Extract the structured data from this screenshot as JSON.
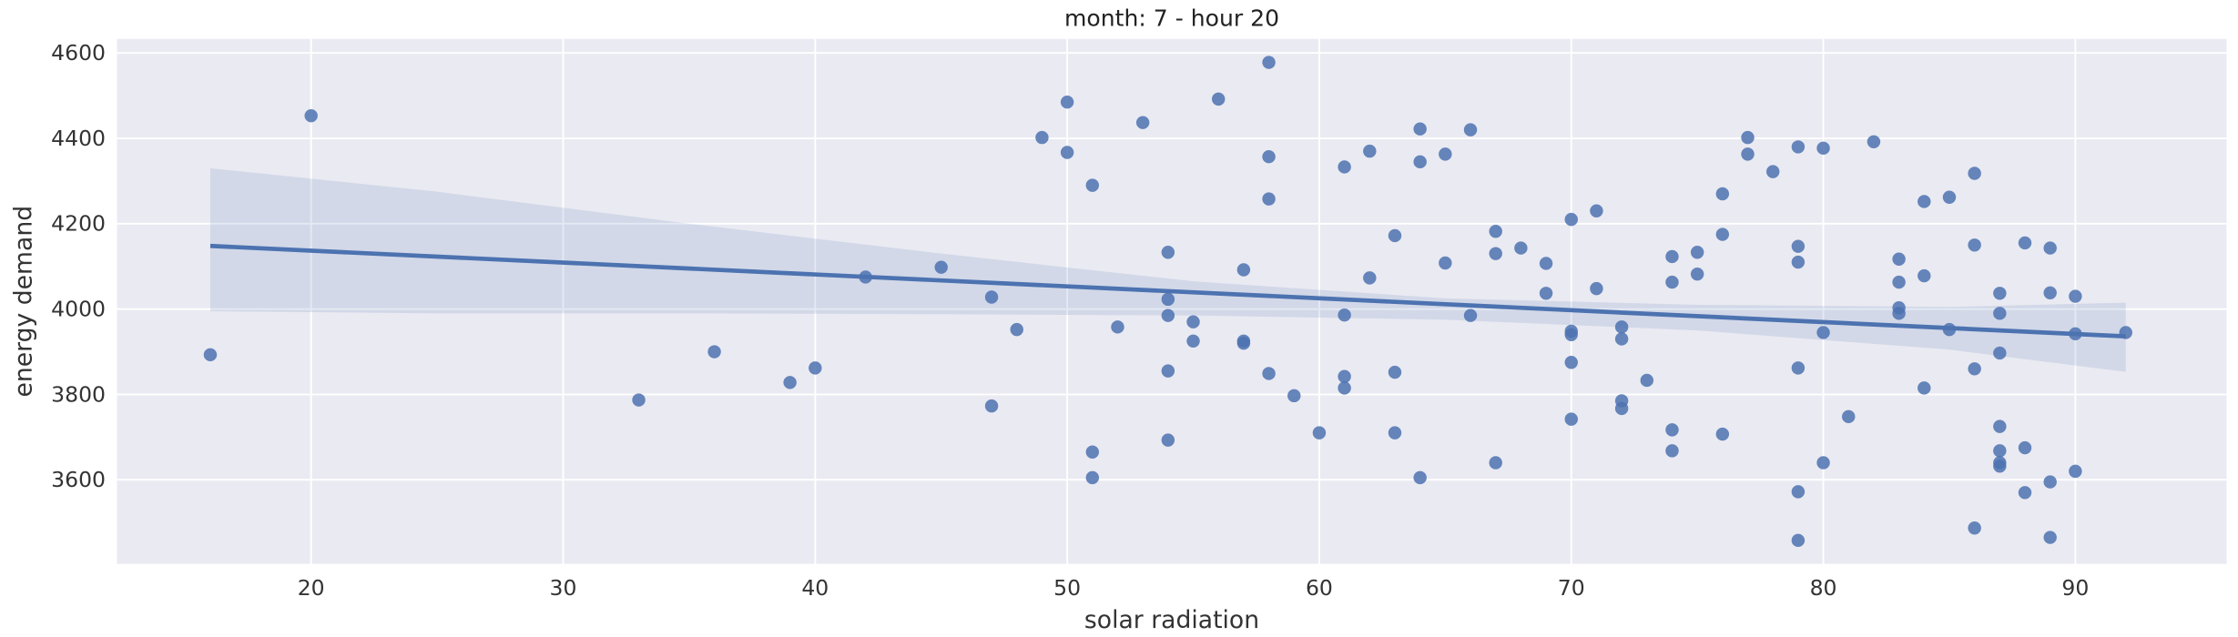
{
  "chart_data": {
    "type": "scatter",
    "title": "month: 7 - hour 20",
    "xlabel": "solar radiation",
    "ylabel": "energy demand",
    "xlim": [
      12.3,
      96.0
    ],
    "ylim": [
      3403,
      4633
    ],
    "xticks": [
      20,
      30,
      40,
      50,
      60,
      70,
      80,
      90
    ],
    "yticks": [
      3600,
      3800,
      4000,
      4200,
      4400,
      4600
    ],
    "grid": true,
    "colors": {
      "background": "#eaeaf2",
      "grid": "#ffffff",
      "points": "#4c72b0",
      "line": "#4c72b0",
      "band": "#4c72b0"
    },
    "points": [
      [
        16,
        3893
      ],
      [
        20,
        4453
      ],
      [
        33,
        3787
      ],
      [
        36,
        3900
      ],
      [
        39,
        3828
      ],
      [
        40,
        3862
      ],
      [
        42,
        4075
      ],
      [
        45,
        4098
      ],
      [
        47,
        4028
      ],
      [
        47,
        3773
      ],
      [
        48,
        3952
      ],
      [
        49,
        4402
      ],
      [
        50,
        4485
      ],
      [
        50,
        4367
      ],
      [
        51,
        4290
      ],
      [
        51,
        3665
      ],
      [
        51,
        3605
      ],
      [
        52,
        3958
      ],
      [
        53,
        4437
      ],
      [
        54,
        4133
      ],
      [
        54,
        4023
      ],
      [
        54,
        3985
      ],
      [
        54,
        3855
      ],
      [
        54,
        3693
      ],
      [
        55,
        3970
      ],
      [
        55,
        3925
      ],
      [
        56,
        4492
      ],
      [
        57,
        4092
      ],
      [
        57,
        3925
      ],
      [
        57,
        3920
      ],
      [
        58,
        4578
      ],
      [
        58,
        4357
      ],
      [
        58,
        4258
      ],
      [
        58,
        3849
      ],
      [
        59,
        3797
      ],
      [
        60,
        3710
      ],
      [
        61,
        4333
      ],
      [
        61,
        3986
      ],
      [
        61,
        3842
      ],
      [
        61,
        3815
      ],
      [
        62,
        4370
      ],
      [
        62,
        4073
      ],
      [
        63,
        4172
      ],
      [
        63,
        3852
      ],
      [
        63,
        3710
      ],
      [
        64,
        4422
      ],
      [
        64,
        4345
      ],
      [
        64,
        3605
      ],
      [
        65,
        4363
      ],
      [
        65,
        4108
      ],
      [
        66,
        4420
      ],
      [
        66,
        3985
      ],
      [
        67,
        4182
      ],
      [
        67,
        4130
      ],
      [
        67,
        3640
      ],
      [
        68,
        4143
      ],
      [
        69,
        4107
      ],
      [
        69,
        4037
      ],
      [
        70,
        4210
      ],
      [
        70,
        3948
      ],
      [
        70,
        3940
      ],
      [
        70,
        3875
      ],
      [
        70,
        3742
      ],
      [
        71,
        4230
      ],
      [
        71,
        4048
      ],
      [
        72,
        3958
      ],
      [
        72,
        3930
      ],
      [
        72,
        3785
      ],
      [
        72,
        3767
      ],
      [
        73,
        3833
      ],
      [
        74,
        4123
      ],
      [
        74,
        4063
      ],
      [
        74,
        3717
      ],
      [
        74,
        3668
      ],
      [
        75,
        4133
      ],
      [
        75,
        4082
      ],
      [
        76,
        4270
      ],
      [
        76,
        4175
      ],
      [
        76,
        3707
      ],
      [
        77,
        4402
      ],
      [
        77,
        4363
      ],
      [
        78,
        4322
      ],
      [
        79,
        4380
      ],
      [
        79,
        4147
      ],
      [
        79,
        4110
      ],
      [
        79,
        3862
      ],
      [
        79,
        3572
      ],
      [
        79,
        3458
      ],
      [
        80,
        4377
      ],
      [
        80,
        3945
      ],
      [
        80,
        3640
      ],
      [
        81,
        3748
      ],
      [
        82,
        4392
      ],
      [
        83,
        4117
      ],
      [
        83,
        4063
      ],
      [
        83,
        4003
      ],
      [
        83,
        3990
      ],
      [
        84,
        4252
      ],
      [
        84,
        4078
      ],
      [
        84,
        3815
      ],
      [
        85,
        4262
      ],
      [
        85,
        3952
      ],
      [
        86,
        4318
      ],
      [
        86,
        4150
      ],
      [
        86,
        3860
      ],
      [
        86,
        3487
      ],
      [
        87,
        4037
      ],
      [
        87,
        3990
      ],
      [
        87,
        3897
      ],
      [
        87,
        3725
      ],
      [
        87,
        3668
      ],
      [
        87,
        3640
      ],
      [
        87,
        3632
      ],
      [
        88,
        4155
      ],
      [
        88,
        3675
      ],
      [
        88,
        3570
      ],
      [
        89,
        4143
      ],
      [
        89,
        4038
      ],
      [
        89,
        3595
      ],
      [
        89,
        3465
      ],
      [
        90,
        4030
      ],
      [
        90,
        3942
      ],
      [
        90,
        3620
      ],
      [
        92,
        3945
      ]
    ],
    "regression_line": [
      [
        16,
        4148
      ],
      [
        92,
        3936
      ]
    ],
    "ci_band": {
      "x": [
        16,
        25,
        35,
        45,
        55,
        65,
        75,
        85,
        92
      ],
      "upper": [
        4330,
        4275,
        4200,
        4130,
        4065,
        4025,
        4010,
        4005,
        4015
      ],
      "lower": [
        3995,
        3990,
        3990,
        3988,
        3985,
        3975,
        3950,
        3905,
        3853
      ]
    }
  }
}
